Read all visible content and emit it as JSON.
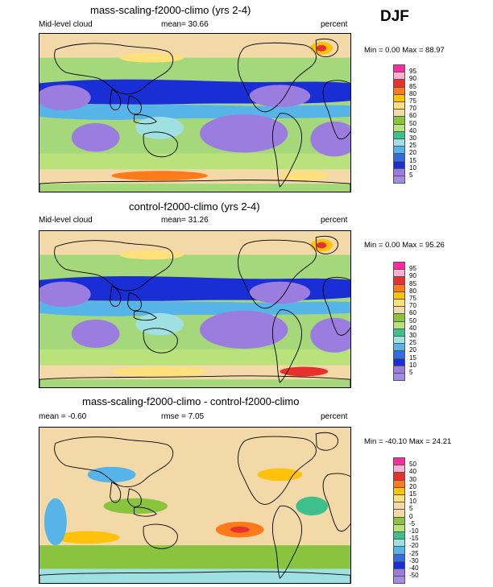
{
  "season": "DJF",
  "panels": [
    {
      "title": "mass-scaling-f2000-climo (yrs 2-4)",
      "left_label": "Mid-level cloud",
      "center_label": "mean=  30.66",
      "right_label": "percent",
      "minmax": "Min =   0.00 Max =  88.97",
      "colorbar": {
        "labels": [
          "95",
          "90",
          "85",
          "80",
          "75",
          "70",
          "60",
          "50",
          "40",
          "30",
          "25",
          "20",
          "15",
          "10",
          "5"
        ],
        "colors": [
          "#ff2aa0",
          "#ffb0d0",
          "#e8302c",
          "#ff7a1a",
          "#ffc20a",
          "#ffe07a",
          "#f3d9a8",
          "#8ac43e",
          "#b9e27a",
          "#3fbf8c",
          "#9fe0e3",
          "#56b4e9",
          "#2f6de0",
          "#1a2ed6",
          "#9b7de0",
          "#a58be3"
        ]
      }
    },
    {
      "title": "control-f2000-climo (yrs 2-4)",
      "left_label": "Mid-level cloud",
      "center_label": "mean=  31.26",
      "right_label": "percent",
      "minmax": "Min =   0.00 Max =  95.26",
      "colorbar": {
        "labels": [
          "95",
          "90",
          "85",
          "80",
          "75",
          "70",
          "60",
          "50",
          "40",
          "30",
          "25",
          "20",
          "15",
          "10",
          "5"
        ],
        "colors": [
          "#ff2aa0",
          "#ffb0d0",
          "#e8302c",
          "#ff7a1a",
          "#ffc20a",
          "#ffe07a",
          "#f3d9a8",
          "#8ac43e",
          "#b9e27a",
          "#3fbf8c",
          "#9fe0e3",
          "#56b4e9",
          "#2f6de0",
          "#1a2ed6",
          "#9b7de0",
          "#a58be3"
        ]
      }
    },
    {
      "title": "mass-scaling-f2000-climo - control-f2000-climo",
      "left_label": "mean =  -0.60",
      "center_label": "rmse =   7.05",
      "right_label": "percent",
      "minmax": "Min = -40.10 Max =  24.21",
      "colorbar": {
        "labels": [
          "50",
          "40",
          "30",
          "20",
          "15",
          "10",
          "5",
          "0",
          "-5",
          "-10",
          "-15",
          "-20",
          "-25",
          "-30",
          "-40",
          "-50"
        ],
        "colors": [
          "#ff2aa0",
          "#ffb0d0",
          "#e8302c",
          "#ff7a1a",
          "#ffc20a",
          "#ffe07a",
          "#f3d9a8",
          "#f3d9a8",
          "#8ac43e",
          "#b9e27a",
          "#3fbf8c",
          "#9fe0e3",
          "#56b4e9",
          "#2f6de0",
          "#1a2ed6",
          "#9b7de0",
          "#a58be3"
        ]
      }
    }
  ],
  "chart_data": [
    {
      "type": "heatmap",
      "title": "mass-scaling-f2000-climo (yrs 2-4)",
      "variable": "Mid-level cloud",
      "units": "percent",
      "mean": 30.66,
      "min": 0.0,
      "max": 88.97,
      "levels": [
        5,
        10,
        15,
        20,
        25,
        30,
        40,
        50,
        60,
        70,
        75,
        80,
        85,
        90,
        95
      ]
    },
    {
      "type": "heatmap",
      "title": "control-f2000-climo (yrs 2-4)",
      "variable": "Mid-level cloud",
      "units": "percent",
      "mean": 31.26,
      "min": 0.0,
      "max": 95.26,
      "levels": [
        5,
        10,
        15,
        20,
        25,
        30,
        40,
        50,
        60,
        70,
        75,
        80,
        85,
        90,
        95
      ]
    },
    {
      "type": "heatmap",
      "title": "mass-scaling-f2000-climo - control-f2000-climo",
      "units": "percent",
      "mean": -0.6,
      "rmse": 7.05,
      "min": -40.1,
      "max": 24.21,
      "levels": [
        -50,
        -40,
        -30,
        -25,
        -20,
        -15,
        -10,
        -5,
        0,
        5,
        10,
        15,
        20,
        30,
        40,
        50
      ]
    }
  ]
}
